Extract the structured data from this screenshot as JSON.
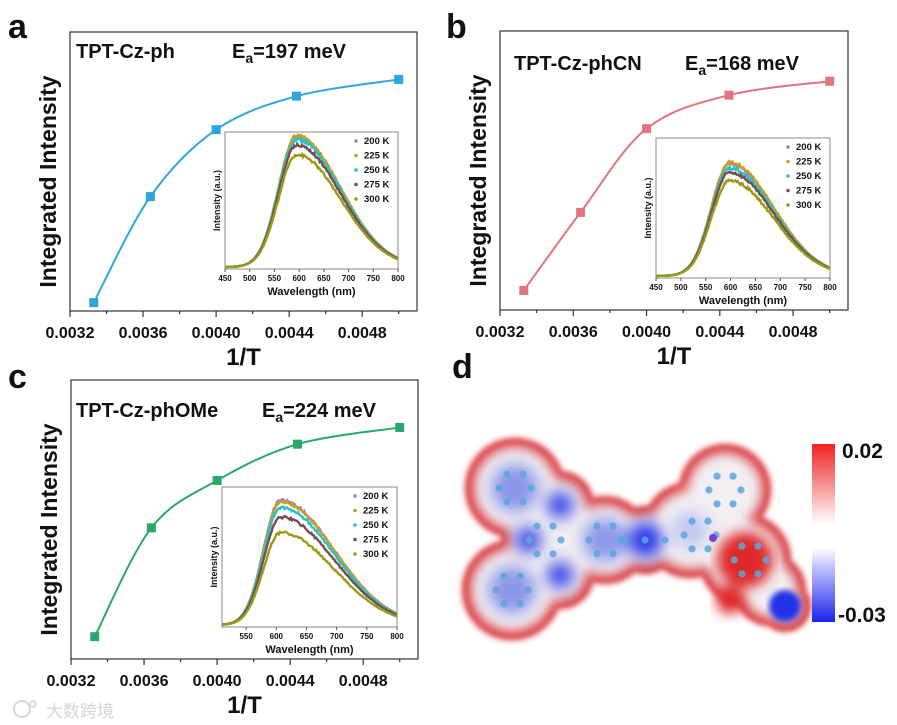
{
  "panels": [
    {
      "label": "a",
      "compound": "TPT-Cz-ph",
      "ea_prefix": "E",
      "ea_sub": "a",
      "ea_value": "=197 meV"
    },
    {
      "label": "b",
      "compound": "TPT-Cz-phCN",
      "ea_prefix": "E",
      "ea_sub": "a",
      "ea_value": "=168 meV"
    },
    {
      "label": "c",
      "compound": "TPT-Cz-phOMe",
      "ea_prefix": "E",
      "ea_sub": "a",
      "ea_value": "=224 meV"
    }
  ],
  "chart_data": [
    {
      "type": "scatter",
      "panel": "a",
      "title": "TPT-Cz-ph",
      "xlabel": "1/T",
      "ylabel": "Integrated Intensity",
      "xlim": [
        0.0032,
        0.0051
      ],
      "ylim": [
        0,
        1
      ],
      "xticks": [
        "0.0032",
        "0.0036",
        "0.0040",
        "0.0044",
        "0.0048"
      ],
      "x": [
        0.00333,
        0.00364,
        0.004,
        0.00444,
        0.005
      ],
      "y": [
        0.03,
        0.41,
        0.65,
        0.77,
        0.83
      ],
      "color": "#2ea6dc",
      "fit_line": true,
      "inset": {
        "type": "line",
        "xlabel": "Wavelength (nm)",
        "ylabel": "Intensity (a.u.)",
        "xlim": [
          450,
          800
        ],
        "ylim": [
          0,
          1
        ],
        "xticks": [
          "450",
          "500",
          "550",
          "600",
          "650",
          "700",
          "750",
          "800"
        ],
        "peak_nm": 595,
        "legend": "top-right",
        "series": [
          {
            "name": "200 K",
            "peak": 0.95,
            "color": "#a07cd0"
          },
          {
            "name": "225 K",
            "peak": 0.96,
            "color": "#c8a024"
          },
          {
            "name": "250 K",
            "peak": 0.93,
            "color": "#22c4c8"
          },
          {
            "name": "275 K",
            "peak": 0.89,
            "color": "#7a4c50"
          },
          {
            "name": "300 K",
            "peak": 0.82,
            "color": "#9a9a14"
          }
        ]
      }
    },
    {
      "type": "scatter",
      "panel": "b",
      "title": "TPT-Cz-phCN",
      "xlabel": "1/T",
      "ylabel": "Integrated Intensity",
      "xlim": [
        0.0032,
        0.0051
      ],
      "ylim": [
        0,
        1
      ],
      "xticks": [
        "0.0032",
        "0.0036",
        "0.0040",
        "0.0044",
        "0.0048"
      ],
      "x": [
        0.00333,
        0.00364,
        0.004,
        0.00445,
        0.005
      ],
      "y": [
        0.07,
        0.35,
        0.65,
        0.77,
        0.82
      ],
      "color": "#e3737d",
      "fit_line": true,
      "inset": {
        "type": "line",
        "xlabel": "Wavelength (nm)",
        "ylabel": "Intensity (a.u.)",
        "xlim": [
          450,
          800
        ],
        "ylim": [
          0,
          1
        ],
        "xticks": [
          "450",
          "500",
          "550",
          "600",
          "650",
          "700",
          "750",
          "800"
        ],
        "peak_nm": 598,
        "legend": "top-right",
        "series": [
          {
            "name": "200 K",
            "peak": 0.8,
            "color": "#a07cd0"
          },
          {
            "name": "225 K",
            "peak": 0.81,
            "color": "#c8a024"
          },
          {
            "name": "250 K",
            "peak": 0.77,
            "color": "#22c4c8"
          },
          {
            "name": "275 K",
            "peak": 0.74,
            "color": "#7a4c50"
          },
          {
            "name": "300 K",
            "peak": 0.68,
            "color": "#9a9a14"
          }
        ]
      }
    },
    {
      "type": "scatter",
      "panel": "c",
      "title": "TPT-Cz-phOMe",
      "xlabel": "1/T",
      "ylabel": "Integrated Intensity",
      "xlim": [
        0.0032,
        0.0051
      ],
      "ylim": [
        0,
        1
      ],
      "xticks": [
        "0.0032",
        "0.0036",
        "0.0040",
        "0.0044",
        "0.0048"
      ],
      "x": [
        0.00333,
        0.00364,
        0.004,
        0.00444,
        0.005
      ],
      "y": [
        0.08,
        0.47,
        0.64,
        0.77,
        0.83
      ],
      "color": "#2aa86a",
      "fit_line": true,
      "inset": {
        "type": "line",
        "xlabel": "Wavelength (nm)",
        "ylabel": "Intensity (a.u.)",
        "xlim": [
          510,
          800
        ],
        "ylim": [
          0,
          1
        ],
        "xticks": [
          "550",
          "600",
          "650",
          "700",
          "750",
          "800"
        ],
        "peak_nm": 607,
        "legend": "top-right",
        "series": [
          {
            "name": "200 K",
            "peak": 0.89,
            "color": "#a07cd0"
          },
          {
            "name": "225 K",
            "peak": 0.88,
            "color": "#c8a024"
          },
          {
            "name": "250 K",
            "peak": 0.84,
            "color": "#22c4c8"
          },
          {
            "name": "275 K",
            "peak": 0.77,
            "color": "#7a4c50"
          },
          {
            "name": "300 K",
            "peak": 0.66,
            "color": "#9a9a14"
          }
        ]
      }
    }
  ],
  "panel_d": {
    "label": "d",
    "colorbar": {
      "max_label": "0.02",
      "min_label": "-0.03",
      "max_color": "#ee2222",
      "mid_color": "#ffffff",
      "min_color": "#1a22ee"
    }
  },
  "watermark": "大数跨境"
}
